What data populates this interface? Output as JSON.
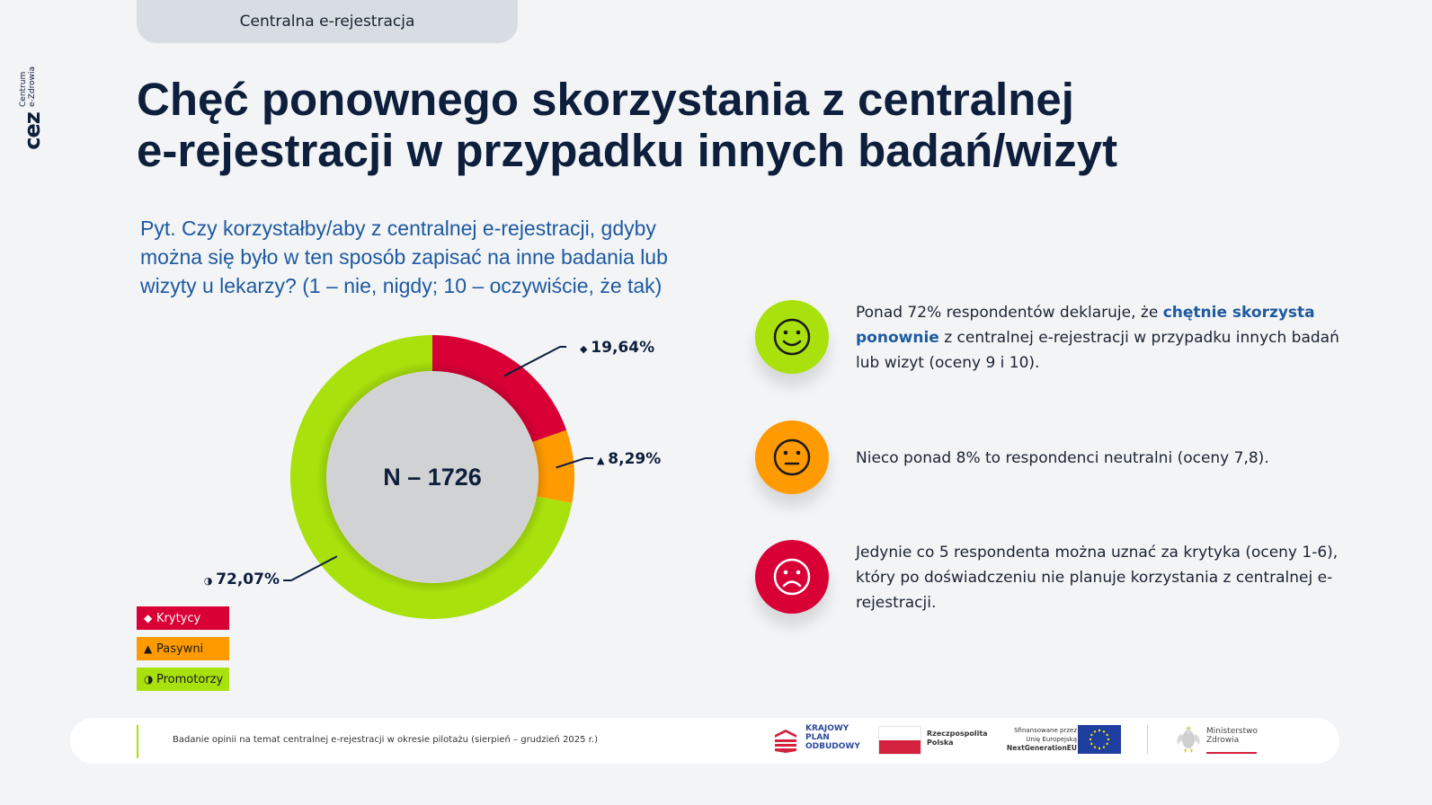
{
  "header": {
    "section_tab": "Centralna e-rejestracja",
    "logo": {
      "brand": "cez",
      "line1": "Centrum",
      "line2": "e-Zdrowia"
    },
    "title_line1": "Chęć ponownego skorzystania z centralnej",
    "title_line2": "e-rejestracji w przypadku innych badań/wizyt"
  },
  "question": "Pyt. Czy korzystałby/aby z centralnej e-rejestracji, gdyby można się było w ten sposób zapisać na inne badania lub wizyty u lekarzy? (1 – nie, nigdy; 10 – oczywiście, że tak)",
  "chart_data": {
    "type": "pie",
    "variant": "donut",
    "center_label": "N – 1726",
    "categories": [
      "Krytycy",
      "Pasywni",
      "Promotorzy"
    ],
    "values": [
      19.64,
      8.29,
      72.07
    ],
    "labels": [
      "19,64%",
      "8,29%",
      "72,07%"
    ],
    "symbols": [
      "◆",
      "▲",
      "◑"
    ],
    "colors": [
      "#d90036",
      "#ff9a00",
      "#a8e10c"
    ],
    "legend_position": "bottom-left"
  },
  "legend": [
    {
      "symbol": "◆",
      "label": "Krytycy"
    },
    {
      "symbol": "▲",
      "label": "Pasywni"
    },
    {
      "symbol": "◑",
      "label": "Promotorzy"
    }
  ],
  "insights": [
    {
      "icon": "smiley-happy-icon",
      "color": "#a8e10c",
      "text_before": "Ponad 72% respondentów deklaruje, że ",
      "text_bold": "chętnie skorzysta ponownie",
      "text_after": " z centralnej e-rejestracji w przypadku innych badań lub wizyt (oceny 9 i 10)."
    },
    {
      "icon": "smiley-neutral-icon",
      "color": "#ff9a00",
      "text": "Nieco ponad 8% to respondenci neutralni (oceny 7,8)."
    },
    {
      "icon": "smiley-sad-icon",
      "color": "#d90036",
      "text": "Jedynie co 5 respondenta można uznać za krytyka (oceny 1-6), który po doświadczeniu nie planuje korzystania z centralnej e-rejestracji."
    }
  ],
  "footer": {
    "note": "Badanie opinii na temat centralnej e-rejestracji w okresie pilotażu (sierpień – grudzień 2025 r.)",
    "kpo": [
      "KRAJOWY",
      "PLAN",
      "ODBUDOWY"
    ],
    "rp": [
      "Rzeczpospolita",
      "Polska"
    ],
    "eu": [
      "Sfinansowane przez",
      "Unię Europejską",
      "NextGenerationEU"
    ],
    "mz": [
      "Ministerstwo",
      "Zdrowia"
    ]
  }
}
